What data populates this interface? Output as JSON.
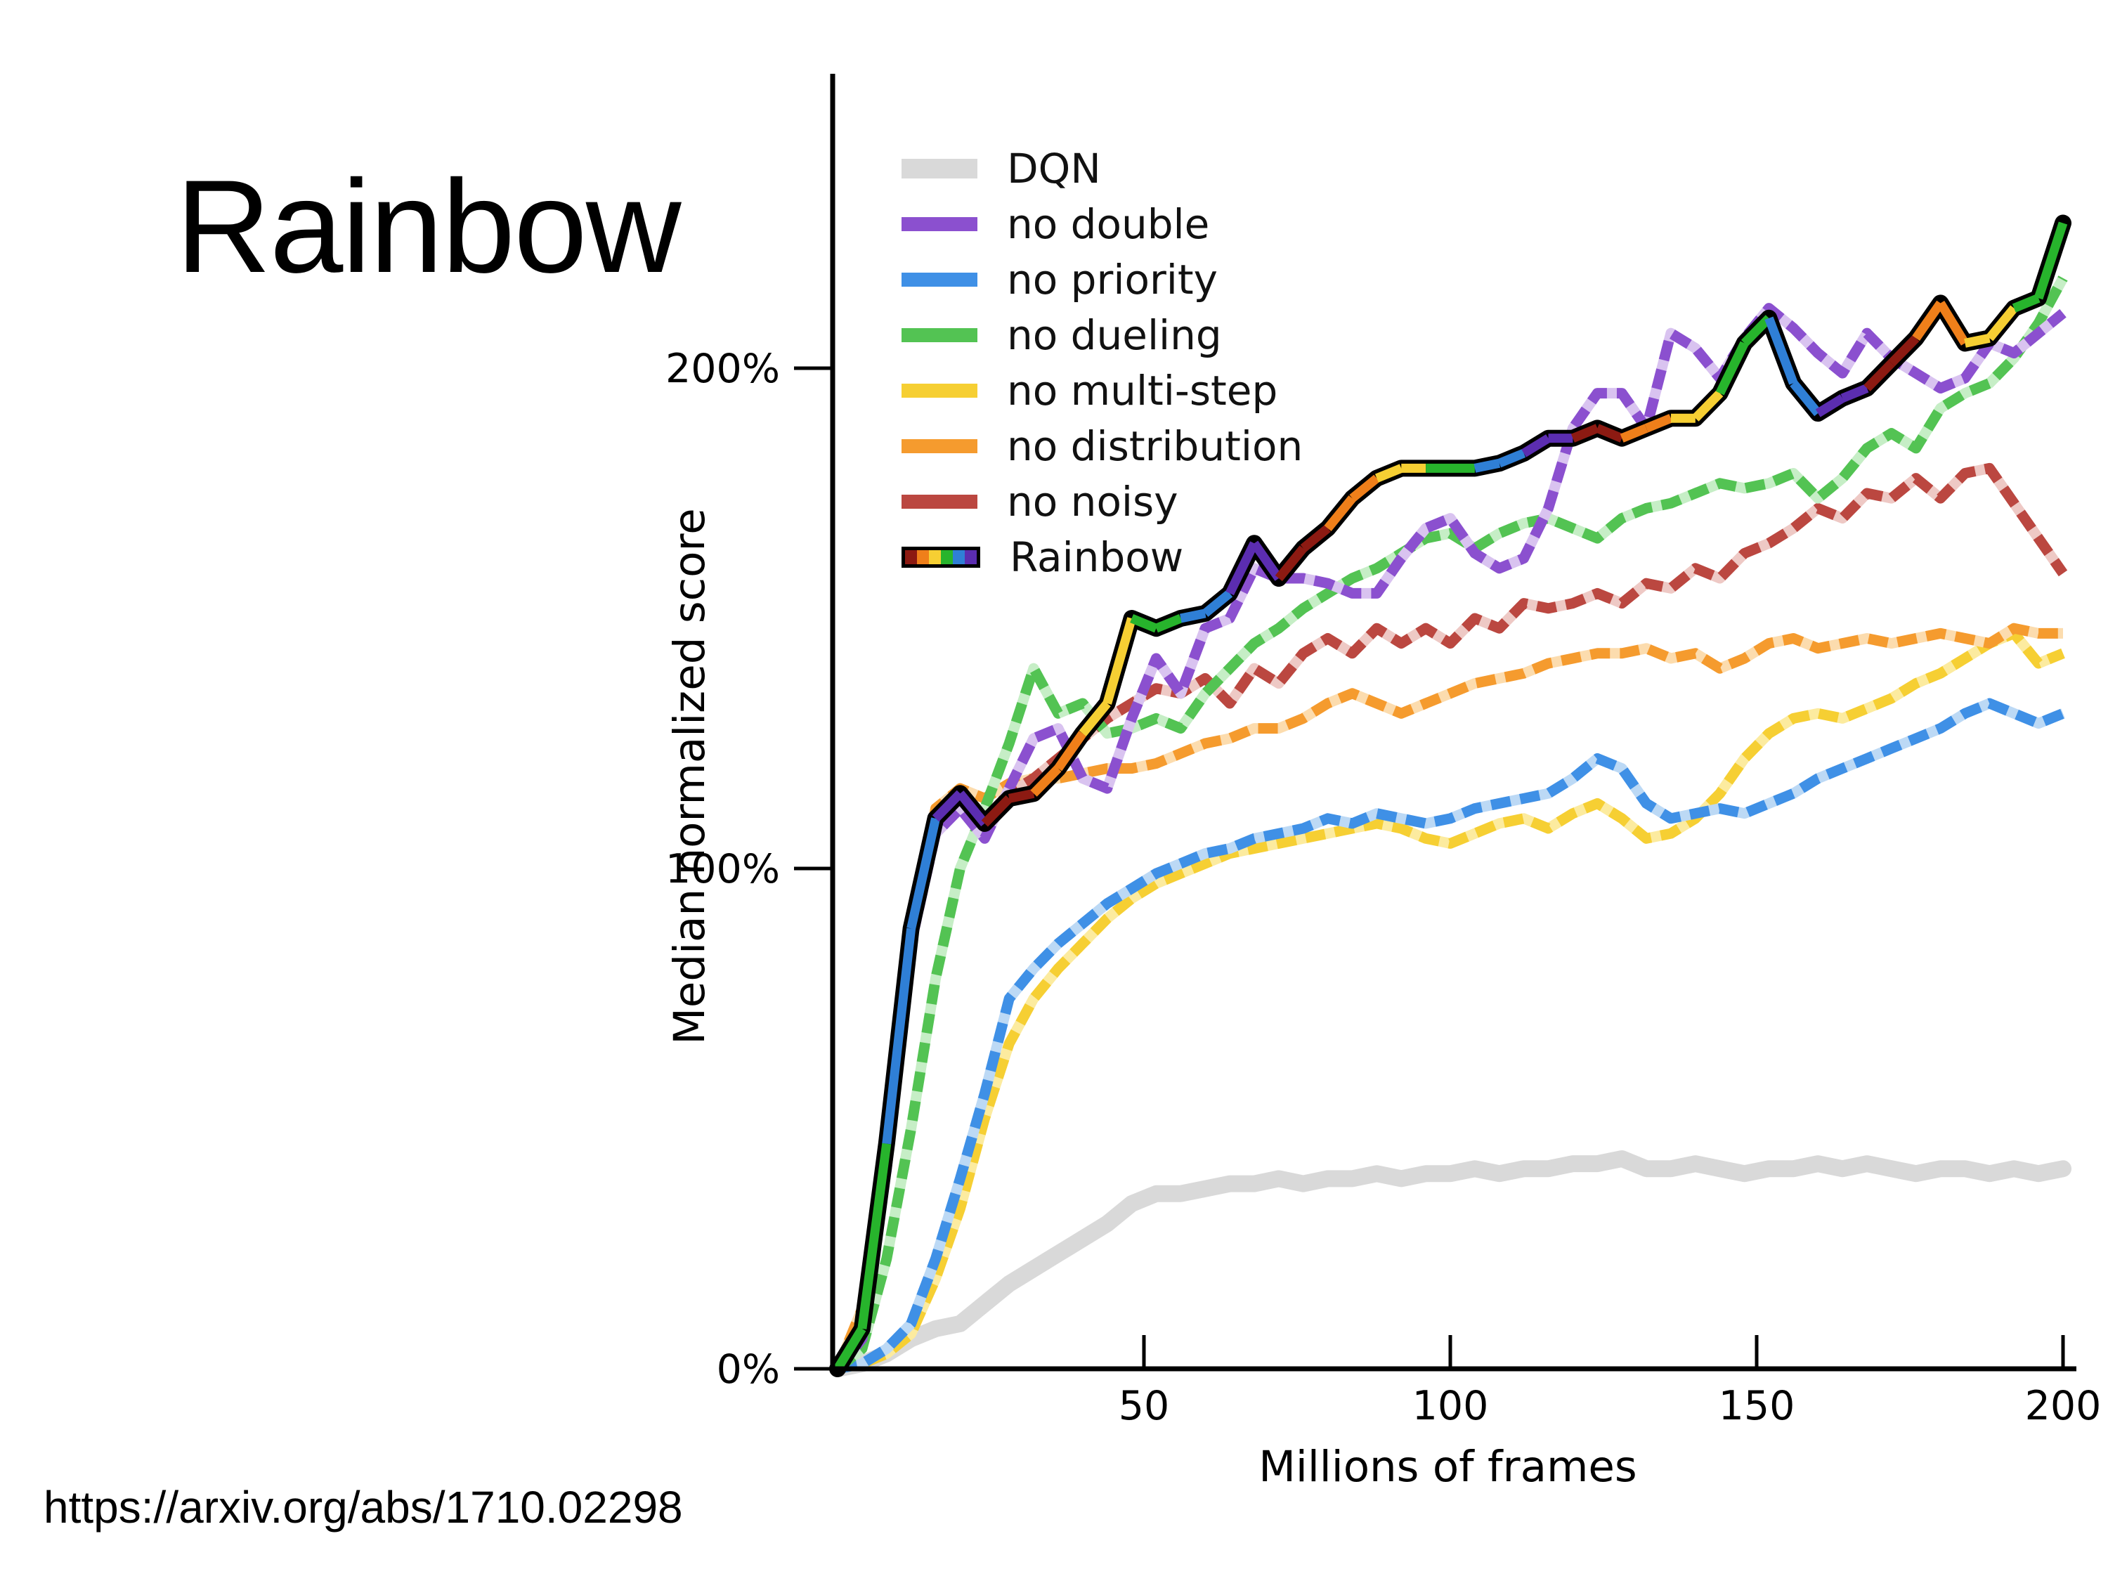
{
  "slide": {
    "title": "Rainbow",
    "source_link": "https://arxiv.org/abs/1710.02298"
  },
  "chart_data": {
    "type": "line",
    "title": "",
    "xlabel": "Millions of frames",
    "ylabel": "Median normalized score",
    "x_tick_labels": [
      "50",
      "100",
      "150",
      "200"
    ],
    "x_tick_values": [
      50,
      100,
      150,
      200
    ],
    "y_tick_labels": [
      "0%",
      "100%",
      "200%"
    ],
    "y_tick_values": [
      0,
      100,
      200
    ],
    "xlim": [
      0,
      205
    ],
    "ylim_pct": [
      0,
      245
    ],
    "grid": false,
    "legend_position": "upper-left-inside",
    "x": {
      "start": 0,
      "step": 4,
      "end": 200,
      "unit": "millions of frames"
    },
    "y_unit": "percent median human-normalized score",
    "series": [
      {
        "name": "DQN",
        "line": "solid",
        "color": "#d9d9d9",
        "values": [
          0,
          1,
          3,
          6,
          8,
          9,
          13,
          17,
          20,
          23,
          26,
          29,
          33,
          35,
          35,
          36,
          37,
          37,
          38,
          37,
          38,
          38,
          39,
          38,
          39,
          39,
          40,
          39,
          40,
          40,
          41,
          41,
          42,
          40,
          40,
          41,
          40,
          39,
          40,
          40,
          41,
          40,
          41,
          40,
          39,
          40,
          40,
          39,
          40,
          39,
          40
        ]
      },
      {
        "name": "no double",
        "line": "dashed",
        "color": "#8b50cf",
        "halo": "#d9c3f0",
        "values": [
          0,
          6,
          40,
          85,
          107,
          112,
          106,
          116,
          126,
          128,
          118,
          116,
          130,
          142,
          135,
          148,
          150,
          160,
          158,
          158,
          157,
          155,
          155,
          162,
          168,
          170,
          163,
          160,
          162,
          172,
          188,
          195,
          195,
          188,
          207,
          204,
          198,
          206,
          212,
          208,
          203,
          199,
          207,
          202,
          199,
          196,
          198,
          205,
          203,
          207,
          211
        ]
      },
      {
        "name": "no priority",
        "line": "dashed",
        "color": "#3f90e6",
        "halo": "#bcd9f5",
        "values": [
          0,
          1,
          4,
          9,
          22,
          38,
          55,
          74,
          80,
          85,
          89,
          93,
          96,
          99,
          101,
          103,
          104,
          106,
          107,
          108,
          110,
          109,
          111,
          110,
          109,
          110,
          112,
          113,
          114,
          115,
          118,
          122,
          120,
          113,
          110,
          111,
          112,
          111,
          113,
          115,
          118,
          120,
          122,
          124,
          126,
          128,
          131,
          133,
          131,
          129,
          131
        ]
      },
      {
        "name": "no dueling",
        "line": "dashed",
        "color": "#53c353",
        "halo": "#c6eec6",
        "values": [
          0,
          4,
          22,
          48,
          78,
          100,
          112,
          125,
          140,
          131,
          133,
          127,
          128,
          130,
          128,
          135,
          140,
          145,
          148,
          152,
          155,
          158,
          160,
          163,
          166,
          167,
          164,
          167,
          169,
          170,
          168,
          166,
          170,
          172,
          173,
          175,
          177,
          176,
          177,
          179,
          174,
          178,
          184,
          187,
          184,
          192,
          195,
          197,
          202,
          209,
          218
        ]
      },
      {
        "name": "no multi-step",
        "line": "dashed",
        "color": "#f6cf33",
        "halo": "#fceb9f",
        "values": [
          0,
          1,
          3,
          7,
          18,
          32,
          50,
          65,
          74,
          80,
          85,
          90,
          94,
          97,
          99,
          101,
          103,
          104,
          105,
          106,
          107,
          108,
          109,
          108,
          106,
          105,
          107,
          109,
          110,
          108,
          111,
          113,
          110,
          106,
          107,
          110,
          115,
          122,
          127,
          130,
          131,
          130,
          132,
          134,
          137,
          139,
          142,
          145,
          147,
          141,
          143
        ]
      },
      {
        "name": "no distribution",
        "line": "dashed",
        "color": "#f59b2e",
        "halo": "#fcdcae",
        "values": [
          0,
          12,
          48,
          85,
          112,
          116,
          114,
          117,
          118,
          118,
          119,
          120,
          120,
          121,
          123,
          125,
          126,
          128,
          128,
          130,
          133,
          135,
          133,
          131,
          133,
          135,
          137,
          138,
          139,
          141,
          142,
          143,
          143,
          144,
          142,
          143,
          140,
          142,
          145,
          146,
          144,
          145,
          146,
          145,
          146,
          147,
          146,
          145,
          148,
          147,
          147
        ]
      },
      {
        "name": "no noisy",
        "line": "dashed",
        "color": "#bb4740",
        "halo": "#eec9c5",
        "values": [
          0,
          7,
          42,
          86,
          108,
          114,
          110,
          115,
          118,
          122,
          126,
          130,
          133,
          136,
          135,
          138,
          133,
          140,
          137,
          143,
          146,
          143,
          148,
          145,
          148,
          145,
          150,
          148,
          153,
          152,
          153,
          155,
          153,
          157,
          156,
          160,
          158,
          163,
          165,
          168,
          172,
          170,
          175,
          174,
          178,
          174,
          179,
          180,
          173,
          166,
          159
        ]
      },
      {
        "name": "Rainbow",
        "line": "multicolor-solid",
        "outline": "#000000",
        "colors": [
          "#8c1a12",
          "#ef7f1a",
          "#f6cf33",
          "#27b42c",
          "#2f7fd6",
          "#5b2db0"
        ],
        "values": [
          0,
          8,
          45,
          88,
          110,
          115,
          109,
          114,
          115,
          120,
          127,
          133,
          150,
          148,
          150,
          151,
          155,
          165,
          158,
          164,
          168,
          174,
          178,
          180,
          180,
          180,
          180,
          181,
          183,
          186,
          186,
          188,
          186,
          188,
          190,
          190,
          195,
          205,
          210,
          197,
          191,
          194,
          196,
          201,
          206,
          213,
          205,
          206,
          212,
          214,
          229
        ]
      }
    ]
  }
}
